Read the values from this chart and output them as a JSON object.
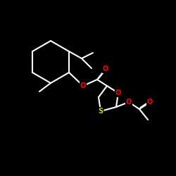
{
  "background": "#000000",
  "bond_color": "#ffffff",
  "atom_colors": {
    "O": "#ff0000",
    "S": "#cccc00"
  },
  "bond_width": 1.5,
  "figsize": [
    2.5,
    2.5
  ],
  "dpi": 100
}
